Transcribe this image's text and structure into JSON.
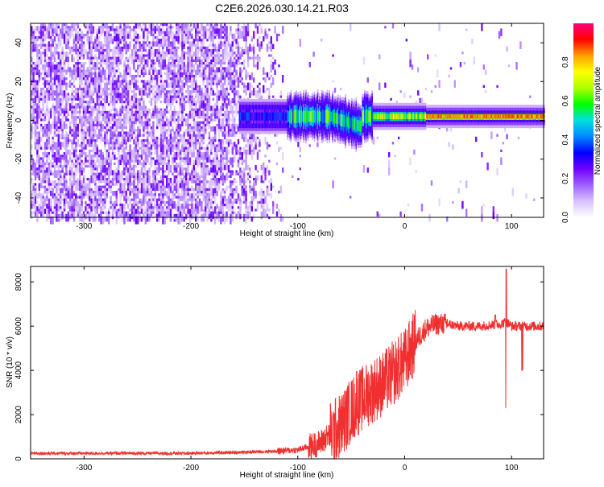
{
  "title": "C2E6.2026.030.14.21.R03",
  "chart_data": [
    {
      "type": "heatmap",
      "title": "C2E6.2026.030.14.21.R03",
      "xlabel": "Height of straight line (km)",
      "ylabel": "Frequency (Hz)",
      "xlim": [
        -350,
        130
      ],
      "ylim": [
        -50,
        50
      ],
      "xticks": [
        -300,
        -200,
        -100,
        0,
        100
      ],
      "yticks": [
        -40,
        -20,
        0,
        20,
        40
      ],
      "colorbar": {
        "label": "Normalized spectral amplitude",
        "range": [
          0,
          1
        ],
        "ticks": [
          "0.0",
          "0.2",
          "0.4",
          "0.6",
          "0.8"
        ],
        "colors": [
          "#ffffff",
          "#d8c2ff",
          "#a060ff",
          "#7000ff",
          "#0000ff",
          "#0088ff",
          "#00e0e0",
          "#00ff00",
          "#b0ff00",
          "#ffff00",
          "#ffa000",
          "#ff0000",
          "#ff0080"
        ]
      },
      "regions": [
        {
          "name": "noise",
          "x_range": [
            -350,
            -110
          ],
          "freq_range": [
            -50,
            50
          ],
          "amplitude": 0.15
        },
        {
          "name": "signal-band",
          "x_range": [
            -155,
            130
          ],
          "center_freq": 2,
          "amplitude_range": [
            0.3,
            0.9
          ]
        }
      ]
    },
    {
      "type": "line",
      "xlabel": "Height of straight line (km)",
      "ylabel": "SNR (10 * v/v)",
      "xlim": [
        -350,
        130
      ],
      "ylim": [
        0,
        8700
      ],
      "xticks": [
        -300,
        -200,
        -100,
        0,
        100
      ],
      "yticks": [
        0,
        2000,
        4000,
        6000,
        8000
      ],
      "series": [
        {
          "name": "SNR",
          "color": "#f03030",
          "x": [
            -350,
            -300,
            -250,
            -200,
            -150,
            -120,
            -100,
            -80,
            -60,
            -50,
            -40,
            -30,
            -20,
            -10,
            0,
            10,
            20,
            30,
            40,
            50,
            70,
            90,
            95,
            100,
            110,
            120,
            130
          ],
          "values": [
            250,
            250,
            250,
            250,
            300,
            350,
            400,
            700,
            1500,
            2200,
            2700,
            3100,
            3400,
            3900,
            4400,
            5300,
            5900,
            6100,
            6100,
            6000,
            6000,
            6100,
            6200,
            6000,
            6000,
            6000,
            6000
          ]
        }
      ],
      "annotations": [
        {
          "x": 95,
          "peak": 8600,
          "dip": 2300
        },
        {
          "x": 85,
          "peak": 6500
        },
        {
          "x": 110,
          "dip": 4000
        },
        {
          "x": -45,
          "peak": 3950
        },
        {
          "x": -10,
          "peak": 6200
        }
      ]
    }
  ]
}
